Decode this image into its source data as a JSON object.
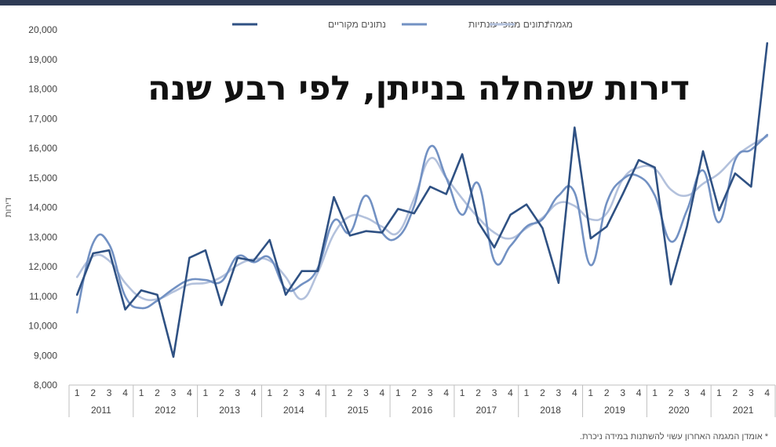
{
  "title": "דירות שהחלה בנייתן, לפי רבע שנה",
  "footnote": "* אומדן המגמה האחרון עשוי להשתנות במידה ניכרת.",
  "chart_data": {
    "type": "line",
    "ylabel": "דירות",
    "ylim": [
      8000,
      20000
    ],
    "y_ticks": [
      "8,000",
      "9,000",
      "10,000",
      "11,000",
      "12,000",
      "13,000",
      "14,000",
      "15,000",
      "16,000",
      "17,000",
      "18,000",
      "19,000",
      "20,000"
    ],
    "grid": false,
    "legend_position": "top",
    "quarter_labels": [
      "1",
      "2",
      "3",
      "4"
    ],
    "years": [
      "2011",
      "2012",
      "2013",
      "2014",
      "2015",
      "2016",
      "2017",
      "2018",
      "2019",
      "2020",
      "2021"
    ],
    "series": [
      {
        "name": "נתונים מקוריים",
        "color": "#2f5183",
        "values": [
          11050,
          12450,
          12550,
          10550,
          11200,
          11050,
          8950,
          12300,
          12550,
          10700,
          12300,
          12200,
          12900,
          11050,
          11850,
          11850,
          14350,
          13050,
          13200,
          13150,
          13950,
          13800,
          14700,
          14450,
          15800,
          13500,
          12650,
          13750,
          14100,
          13300,
          11450,
          16700,
          12950,
          13350,
          14450,
          15600,
          15350,
          11400,
          13350,
          15900,
          13900,
          15150,
          14700,
          19550
        ]
      },
      {
        "name": "נתונים מנוכי עונתיות",
        "color": "#7291c3",
        "values": [
          10450,
          12800,
          12750,
          11000,
          10600,
          10850,
          11250,
          11550,
          11550,
          11500,
          12350,
          12150,
          12300,
          11250,
          11400,
          11950,
          13550,
          13150,
          14400,
          13150,
          13000,
          14050,
          16050,
          15000,
          13750,
          14800,
          12200,
          12700,
          13350,
          13600,
          14400,
          14500,
          12050,
          14150,
          14950,
          15050,
          14400,
          12850,
          13900,
          15250,
          13500,
          15600,
          15950,
          16450
        ]
      },
      {
        "name": "מגמה*",
        "color": "#b3c1dc",
        "values": [
          11650,
          12350,
          12200,
          11450,
          10950,
          10900,
          11150,
          11400,
          11450,
          11650,
          12050,
          12250,
          12200,
          11650,
          10900,
          11800,
          13100,
          13700,
          13650,
          13350,
          13150,
          14300,
          15650,
          15000,
          14300,
          13650,
          13150,
          12950,
          13300,
          13650,
          14150,
          14050,
          13600,
          13800,
          14950,
          15350,
          15300,
          14600,
          14400,
          14800,
          15150,
          15700,
          16100,
          16400
        ]
      }
    ]
  }
}
